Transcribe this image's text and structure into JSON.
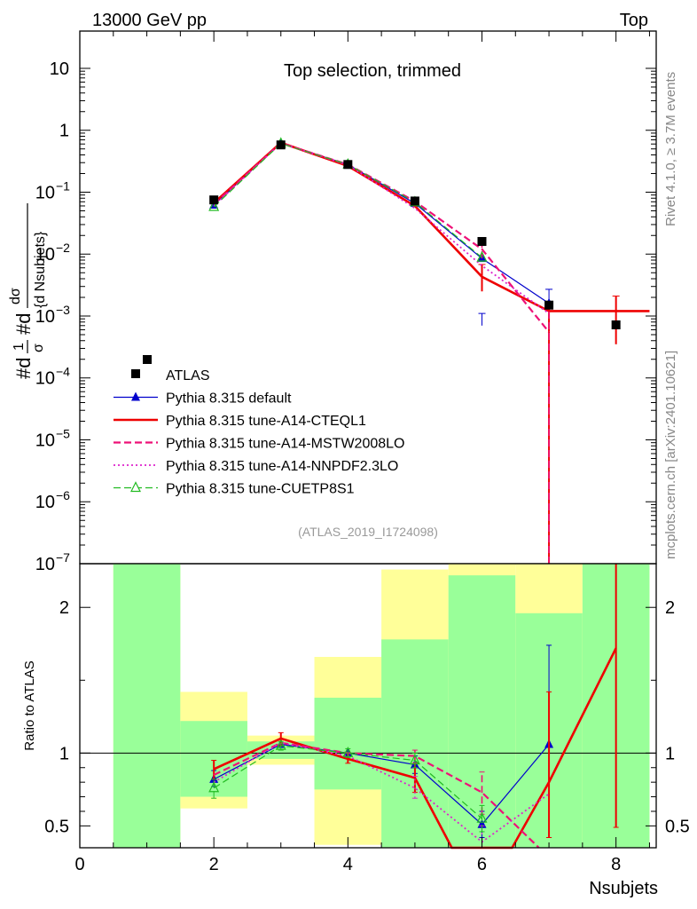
{
  "header": {
    "left_label": "13000 GeV pp",
    "right_label": "Top",
    "side_label_top": "Rivet 4.1.0, ≥ 3.7M events",
    "side_label_bottom": "mcplots.cern.ch [arXiv:2401.10621]"
  },
  "chart_data": [
    {
      "type": "line",
      "panel": "main",
      "title": "Top selection, trimmed",
      "ylabel_parts": [
        "#d",
        "1",
        "σ",
        "#d",
        "dσ",
        "{d Nsubjets}"
      ],
      "yscale": "log",
      "xlim": [
        0,
        8.6
      ],
      "ylim": [
        1e-07,
        40
      ],
      "ytick_labels": [
        {
          "value": 10,
          "base": "10",
          "exp": ""
        },
        {
          "value": 1,
          "base": "1",
          "exp": ""
        },
        {
          "value": 0.1,
          "base": "10",
          "exp": "−1"
        },
        {
          "value": 0.01,
          "base": "10",
          "exp": "−2"
        },
        {
          "value": 0.001,
          "base": "10",
          "exp": "−3"
        },
        {
          "value": 0.0001,
          "base": "10",
          "exp": "−4"
        },
        {
          "value": 1e-05,
          "base": "10",
          "exp": "−5"
        },
        {
          "value": 1e-06,
          "base": "10",
          "exp": "−6"
        },
        {
          "value": 1e-07,
          "base": "10",
          "exp": "−7"
        }
      ],
      "annotation": "(ATLAS_2019_I1724098)",
      "legend_location": "lower-left",
      "data": {
        "name": "ATLAS",
        "x": [
          2,
          3,
          4,
          5,
          6,
          7,
          8
        ],
        "y": [
          0.075,
          0.58,
          0.28,
          0.072,
          0.016,
          0.0015,
          0.00072
        ]
      },
      "series": [
        {
          "name": "Pythia 8.315 default",
          "color": "#0000cc",
          "style": "solid",
          "width": 1.2,
          "marker": "triangle-filled",
          "x": [
            2,
            3,
            4,
            5,
            6,
            7
          ],
          "y": [
            0.062,
            0.62,
            0.28,
            0.066,
            0.0085,
            0.0016
          ],
          "err": [
            [
              5,
              0.0,
              0.0
            ],
            [
              6,
              0.0007,
              0.0011
            ],
            [
              7,
              0.0007,
              0.0027
            ]
          ]
        },
        {
          "name": "Pythia 8.315 tune-A14-CTEQL1",
          "color": "#ee0000",
          "style": "solid",
          "width": 2.6,
          "marker": "none",
          "x": [
            2,
            3,
            4,
            5,
            6,
            7,
            8
          ],
          "y": [
            0.067,
            0.63,
            0.265,
            0.06,
            0.0043,
            0.0012,
            0.0012
          ],
          "step_from": 6.5,
          "err": [
            [
              6,
              0.0025,
              0.0068
            ],
            [
              7,
              0.0,
              0.0016
            ],
            [
              8,
              0.00035,
              0.0021
            ]
          ]
        },
        {
          "name": "Pythia 8.315 tune-A14-MSTW2008LO",
          "color": "#ee1177",
          "style": "dashed",
          "width": 2.2,
          "marker": "none",
          "x": [
            2,
            3,
            4,
            5,
            6,
            7
          ],
          "y": [
            0.064,
            0.62,
            0.28,
            0.071,
            0.012,
            0.00055
          ],
          "err": [
            [
              6,
              0.0085,
              0.016
            ],
            [
              7,
              8e-08,
              0.0015
            ]
          ]
        },
        {
          "name": "Pythia 8.315 tune-A14-NNPDF2.3LO",
          "color": "#dd22cc",
          "style": "dotted",
          "width": 1.8,
          "marker": "none",
          "x": [
            2,
            3,
            4,
            5,
            6,
            7
          ],
          "y": [
            0.06,
            0.62,
            0.275,
            0.055,
            0.0065,
            0.0011
          ],
          "err": []
        },
        {
          "name": "Pythia 8.315 tune-CUETP8S1",
          "color": "#22bb22",
          "style": "dashed",
          "width": 1.2,
          "marker": "triangle-open",
          "x": [
            2,
            3,
            4,
            5,
            6
          ],
          "y": [
            0.058,
            0.61,
            0.28,
            0.069,
            0.0088
          ],
          "err": []
        }
      ]
    },
    {
      "type": "line",
      "panel": "ratio",
      "ylabel": "Ratio to ATLAS",
      "xlabel": "Nsubjets",
      "xlim": [
        0,
        8.6
      ],
      "ylim": [
        0.35,
        2.3
      ],
      "x_ticks": [
        0,
        2,
        4,
        6,
        8
      ],
      "y_ticks": [
        0.5,
        1,
        2
      ],
      "uncertainty_bands": [
        {
          "x": [
            0.5,
            1.5
          ],
          "green": [
            0.35,
            2.3
          ],
          "yellow": [
            0.35,
            2.3
          ]
        },
        {
          "x": [
            1.5,
            2.5
          ],
          "green": [
            0.7,
            1.22
          ],
          "yellow": [
            0.62,
            1.42
          ]
        },
        {
          "x": [
            2.5,
            3.5
          ],
          "green": [
            0.96,
            1.08
          ],
          "yellow": [
            0.92,
            1.12
          ]
        },
        {
          "x": [
            3.5,
            4.5
          ],
          "green": [
            0.75,
            1.38
          ],
          "yellow": [
            0.37,
            1.66
          ]
        },
        {
          "x": [
            4.5,
            5.5
          ],
          "green": [
            0.35,
            1.78
          ],
          "yellow": [
            0.35,
            2.26
          ]
        },
        {
          "x": [
            5.5,
            6.5
          ],
          "green": [
            0.35,
            2.22
          ],
          "yellow": [
            0.35,
            2.3
          ]
        },
        {
          "x": [
            6.5,
            7.5
          ],
          "green": [
            0.35,
            1.96
          ],
          "yellow": [
            0.35,
            2.3
          ]
        },
        {
          "x": [
            7.5,
            8.5
          ],
          "green": [
            0.35,
            2.3
          ],
          "yellow": [
            0.35,
            2.3
          ]
        }
      ],
      "series": [
        {
          "name": "Pythia 8.315 default",
          "x": [
            2,
            3,
            4,
            5,
            6,
            7
          ],
          "y": [
            0.82,
            1.06,
            1.0,
            0.92,
            0.51,
            1.06
          ],
          "err": [
            [
              2,
              0.77,
              0.88
            ],
            [
              5,
              0.86,
              0.98
            ],
            [
              6,
              0.42,
              0.6
            ],
            [
              7,
              0.42,
              1.74
            ]
          ]
        },
        {
          "name": "Pythia 8.315 tune-A14-CTEQL1",
          "x": [
            2,
            3,
            4,
            5,
            5.55,
            6.45,
            7,
            8
          ],
          "y": [
            0.89,
            1.1,
            0.96,
            0.83,
            0.33,
            0.33,
            0.8,
            1.72
          ],
          "err": [
            [
              2,
              0.82,
              0.95
            ],
            [
              3,
              1.05,
              1.14
            ],
            [
              4,
              0.93,
              1.0
            ],
            [
              5,
              0.73,
              0.93
            ],
            [
              7,
              0.42,
              1.42
            ],
            [
              8,
              0.49,
              2.34
            ]
          ]
        },
        {
          "name": "Pythia 8.315 tune-A14-MSTW2008LO",
          "x": [
            2,
            3,
            4,
            5,
            6,
            6.85
          ],
          "y": [
            0.85,
            1.07,
            1.0,
            0.98,
            0.73,
            0.33
          ],
          "err": [
            [
              5,
              0.93,
              1.02
            ],
            [
              6,
              0.58,
              0.87
            ]
          ]
        },
        {
          "name": "Pythia 8.315 tune-A14-NNPDF2.3LO",
          "x": [
            2,
            3,
            4,
            5,
            6,
            7
          ],
          "y": [
            0.8,
            1.07,
            0.98,
            0.76,
            0.39,
            0.72
          ],
          "err": [
            [
              5,
              0.69,
              0.84
            ],
            [
              6,
              0.35,
              0.5
            ]
          ]
        },
        {
          "name": "Pythia 8.315 tune-CUETP8S1",
          "x": [
            2,
            3,
            4,
            5,
            6
          ],
          "y": [
            0.76,
            1.05,
            1.0,
            0.95,
            0.55
          ],
          "err": [
            [
              2,
              0.69,
              0.82
            ],
            [
              3,
              1.02,
              1.08
            ],
            [
              4,
              0.97,
              1.03
            ],
            [
              5,
              0.9,
              1.0
            ],
            [
              6,
              0.46,
              0.64
            ]
          ]
        }
      ]
    }
  ]
}
